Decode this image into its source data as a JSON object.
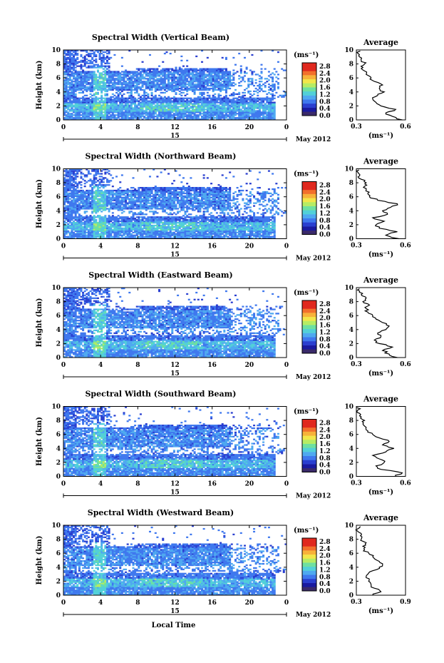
{
  "chart_data": [
    {
      "type": "heatmap",
      "title": "Spectral Width (Vertical Beam)",
      "ylabel": "Height (km)",
      "ylim": [
        0,
        10
      ],
      "yticks": [
        "0",
        "2",
        "4",
        "6",
        "8",
        "10"
      ],
      "xlim": [
        0,
        24
      ],
      "xticks": [
        "0",
        "4",
        "8",
        "12",
        "16",
        "20",
        "0"
      ],
      "day_label": "15",
      "date_label": "May 2012",
      "colorbar": {
        "unit": "(ms⁻¹)",
        "ticks": [
          "0.0",
          "0.4",
          "0.8",
          "1.2",
          "1.6",
          "2.0",
          "2.4",
          "2.8"
        ],
        "range": [
          0.0,
          3.0
        ]
      },
      "profile": {
        "title": "Average",
        "xlabel": "(ms⁻¹)",
        "xlim": [
          0.3,
          0.6
        ],
        "xticks": [
          "0.3",
          "0.6"
        ],
        "yticks": [
          "0",
          "2",
          "4",
          "6",
          "8",
          "10"
        ],
        "heights": [
          0,
          0.5,
          1,
          1.5,
          2,
          2.5,
          3,
          3.5,
          4,
          4.5,
          5,
          5.5,
          6,
          6.5,
          7,
          7.5,
          8,
          8.5,
          9,
          9.5
        ],
        "values": [
          0.58,
          0.52,
          0.48,
          0.54,
          0.45,
          0.42,
          0.4,
          0.43,
          0.47,
          0.44,
          0.46,
          0.41,
          0.39,
          0.36,
          0.35,
          0.34,
          0.35,
          0.33,
          0.32,
          0.31
        ]
      }
    },
    {
      "type": "heatmap",
      "title": "Spectral Width (Northward Beam)",
      "ylabel": "Height (km)",
      "ylim": [
        0,
        10
      ],
      "yticks": [
        "0",
        "2",
        "4",
        "6",
        "8",
        "10"
      ],
      "xlim": [
        0,
        24
      ],
      "xticks": [
        "0",
        "4",
        "8",
        "12",
        "16",
        "20",
        "0"
      ],
      "day_label": "15",
      "date_label": "May 2012",
      "colorbar": {
        "unit": "(ms⁻¹)",
        "ticks": [
          "0.0",
          "0.4",
          "0.8",
          "1.2",
          "1.6",
          "2.0",
          "2.4",
          "2.8"
        ],
        "range": [
          0.0,
          3.0
        ]
      },
      "profile": {
        "title": "Average",
        "xlabel": "(ms⁻¹)",
        "xlim": [
          0.3,
          0.6
        ],
        "xticks": [
          "0.3",
          "0.6"
        ],
        "yticks": [
          "0",
          "2",
          "4",
          "6",
          "8",
          "10"
        ],
        "heights": [
          0,
          0.5,
          1,
          1.5,
          2,
          2.5,
          3,
          3.5,
          4,
          4.5,
          5,
          5.5,
          6,
          6.5,
          7,
          7.5,
          8,
          8.5,
          9,
          9.5
        ],
        "values": [
          0.56,
          0.48,
          0.55,
          0.44,
          0.42,
          0.47,
          0.4,
          0.49,
          0.46,
          0.51,
          0.55,
          0.43,
          0.38,
          0.37,
          0.36,
          0.35,
          0.36,
          0.33,
          0.32,
          0.31
        ]
      }
    },
    {
      "type": "heatmap",
      "title": "Spectral Width (Eastward Beam)",
      "ylabel": "Height (km)",
      "ylim": [
        0,
        10
      ],
      "yticks": [
        "0",
        "2",
        "4",
        "6",
        "8",
        "10"
      ],
      "xlim": [
        0,
        24
      ],
      "xticks": [
        "0",
        "4",
        "8",
        "12",
        "16",
        "20",
        "0"
      ],
      "day_label": "15",
      "date_label": "May 2012",
      "colorbar": {
        "unit": "(ms⁻¹)",
        "ticks": [
          "0.0",
          "0.4",
          "0.8",
          "1.2",
          "1.6",
          "2.0",
          "2.4",
          "2.8"
        ],
        "range": [
          0.0,
          3.0
        ]
      },
      "profile": {
        "title": "Average",
        "xlabel": "(ms⁻¹)",
        "xlim": [
          0.3,
          0.6
        ],
        "xticks": [
          "0.3",
          "0.6"
        ],
        "yticks": [
          "0",
          "2",
          "4",
          "6",
          "8",
          "10"
        ],
        "heights": [
          0,
          0.5,
          1,
          1.5,
          2,
          2.5,
          3,
          3.5,
          4,
          4.5,
          5,
          5.5,
          6,
          6.5,
          7,
          7.5,
          8,
          8.5,
          9,
          9.5
        ],
        "values": [
          0.55,
          0.5,
          0.46,
          0.52,
          0.44,
          0.41,
          0.45,
          0.43,
          0.48,
          0.5,
          0.46,
          0.42,
          0.4,
          0.37,
          0.36,
          0.38,
          0.34,
          0.36,
          0.33,
          0.32
        ]
      }
    },
    {
      "type": "heatmap",
      "title": "Spectral Width (Southward Beam)",
      "ylabel": "Height (km)",
      "ylim": [
        0,
        10
      ],
      "yticks": [
        "0",
        "2",
        "4",
        "6",
        "8",
        "10"
      ],
      "xlim": [
        0,
        24
      ],
      "xticks": [
        "0",
        "4",
        "8",
        "12",
        "16",
        "20",
        "0"
      ],
      "day_label": "15",
      "date_label": "May 2012",
      "colorbar": {
        "unit": "(ms⁻¹)",
        "ticks": [
          "0.0",
          "0.4",
          "0.8",
          "1.2",
          "1.6",
          "2.0",
          "2.4",
          "2.8"
        ],
        "range": [
          0.0,
          3.0
        ]
      },
      "profile": {
        "title": "Average",
        "xlabel": "(ms⁻¹)",
        "xlim": [
          0.3,
          0.6
        ],
        "xticks": [
          "0.3",
          "0.6"
        ],
        "yticks": [
          "0",
          "2",
          "4",
          "6",
          "8",
          "10"
        ],
        "heights": [
          0,
          0.5,
          1,
          1.5,
          2,
          2.5,
          3,
          3.5,
          4,
          4.5,
          5,
          5.5,
          6,
          6.5,
          7,
          7.5,
          8,
          8.5,
          9,
          9.5
        ],
        "values": [
          0.54,
          0.58,
          0.45,
          0.42,
          0.47,
          0.44,
          0.4,
          0.48,
          0.53,
          0.46,
          0.5,
          0.44,
          0.4,
          0.37,
          0.36,
          0.34,
          0.35,
          0.33,
          0.32,
          0.31
        ]
      }
    },
    {
      "type": "heatmap",
      "title": "Spectral Width (Westward Beam)",
      "ylabel": "Height (km)",
      "ylim": [
        0,
        10
      ],
      "yticks": [
        "0",
        "2",
        "4",
        "6",
        "8",
        "10"
      ],
      "xlim": [
        0,
        24
      ],
      "xticks": [
        "0",
        "4",
        "8",
        "12",
        "16",
        "20",
        "0"
      ],
      "day_label": "15",
      "date_label": "May 2012",
      "colorbar": {
        "unit": "(ms⁻¹)",
        "ticks": [
          "0.0",
          "0.4",
          "0.8",
          "1.2",
          "1.6",
          "2.0",
          "2.4",
          "2.8"
        ],
        "range": [
          0.0,
          3.0
        ]
      },
      "profile": {
        "title": "Average",
        "xlabel": "(ms⁻¹)",
        "xlim": [
          0.3,
          0.9
        ],
        "xticks": [
          "0.3",
          "0.9"
        ],
        "yticks": [
          "0",
          "2",
          "4",
          "6",
          "8",
          "10"
        ],
        "heights": [
          0,
          0.5,
          1,
          1.5,
          2,
          2.5,
          3,
          3.5,
          4,
          4.5,
          5,
          5.5,
          6,
          6.5,
          7,
          7.5,
          8,
          8.5,
          9,
          9.5
        ],
        "values": [
          0.5,
          0.6,
          0.52,
          0.48,
          0.45,
          0.42,
          0.44,
          0.5,
          0.58,
          0.62,
          0.55,
          0.5,
          0.45,
          0.4,
          0.38,
          0.42,
          0.36,
          0.35,
          0.33,
          0.32
        ]
      }
    }
  ],
  "xlabel_bottom": "Local Time",
  "colors": {
    "colormap": [
      "#1a1aa0",
      "#2a3fd0",
      "#3f78ee",
      "#4fa9f0",
      "#52d0d8",
      "#6ee0a0",
      "#b6ec64",
      "#f2e64a",
      "#f7b23a",
      "#f2702c",
      "#e0281e"
    ]
  }
}
